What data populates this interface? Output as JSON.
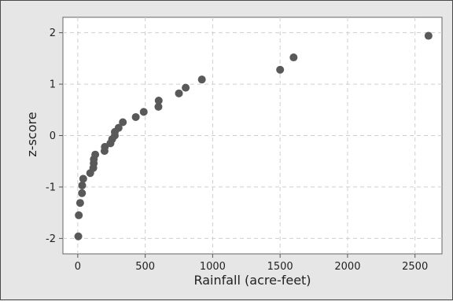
{
  "chart_data": {
    "type": "scatter",
    "title": "",
    "xlabel": "Rainfall (acre-feet)",
    "ylabel": "z-score",
    "xlim": [
      -110,
      2700
    ],
    "ylim": [
      -2.3,
      2.3
    ],
    "xticks": [
      0,
      500,
      1000,
      1500,
      2000,
      2500
    ],
    "yticks": [
      -2,
      -1,
      0,
      1,
      2
    ],
    "grid": true,
    "colors": {
      "point": "#595959",
      "plot_background": "#ffffff",
      "figure_background": "#e6e6e6",
      "grid": "#cfcfcf"
    },
    "points": [
      {
        "x": 4.1,
        "y": -1.96
      },
      {
        "x": 7.7,
        "y": -1.55
      },
      {
        "x": 17.5,
        "y": -1.31
      },
      {
        "x": 31.4,
        "y": -1.12
      },
      {
        "x": 32.7,
        "y": -0.97
      },
      {
        "x": 40.6,
        "y": -0.84
      },
      {
        "x": 92.4,
        "y": -0.73
      },
      {
        "x": 115.3,
        "y": -0.63
      },
      {
        "x": 118.3,
        "y": -0.54
      },
      {
        "x": 119.0,
        "y": -0.46
      },
      {
        "x": 129.6,
        "y": -0.37
      },
      {
        "x": 198.6,
        "y": -0.3
      },
      {
        "x": 200.7,
        "y": -0.22
      },
      {
        "x": 242.5,
        "y": -0.15
      },
      {
        "x": 255.0,
        "y": -0.07
      },
      {
        "x": 274.7,
        "y": 0.0
      },
      {
        "x": 274.7,
        "y": 0.07
      },
      {
        "x": 302.8,
        "y": 0.15
      },
      {
        "x": 334.1,
        "y": 0.26
      },
      {
        "x": 430.0,
        "y": 0.36
      },
      {
        "x": 489.1,
        "y": 0.46
      },
      {
        "x": 598.0,
        "y": 0.56
      },
      {
        "x": 600.0,
        "y": 0.68
      },
      {
        "x": 750.0,
        "y": 0.82
      },
      {
        "x": 800.0,
        "y": 0.93
      },
      {
        "x": 920.0,
        "y": 1.09
      },
      {
        "x": 1500.0,
        "y": 1.28
      },
      {
        "x": 1600.0,
        "y": 1.52
      },
      {
        "x": 2600.0,
        "y": 1.94
      }
    ]
  }
}
